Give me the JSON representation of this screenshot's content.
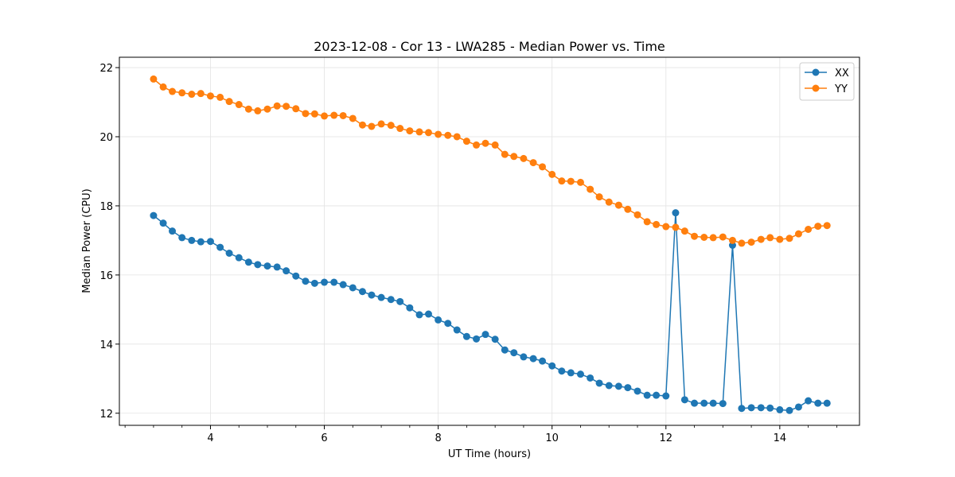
{
  "chart_data": {
    "type": "line",
    "title": "2023-12-08 - Cor 13 - LWA285 - Median Power vs. Time",
    "xlabel": "UT Time (hours)",
    "ylabel": "Median Power (CPU)",
    "xlim": [
      2.4,
      15.4
    ],
    "ylim": [
      11.65,
      22.3
    ],
    "xticks": [
      4,
      6,
      8,
      10,
      12,
      14
    ],
    "xtick_labels": [
      "4",
      "6",
      "8",
      "10",
      "12",
      "14"
    ],
    "yticks": [
      12,
      14,
      16,
      18,
      20,
      22
    ],
    "ytick_labels": [
      "12",
      "14",
      "16",
      "18",
      "20",
      "22"
    ],
    "grid": true,
    "legend_position": "top-right",
    "x": [
      3.0,
      3.17,
      3.33,
      3.5,
      3.67,
      3.83,
      4.0,
      4.17,
      4.33,
      4.5,
      4.67,
      4.83,
      5.0,
      5.17,
      5.33,
      5.5,
      5.67,
      5.83,
      6.0,
      6.17,
      6.33,
      6.5,
      6.67,
      6.83,
      7.0,
      7.17,
      7.33,
      7.5,
      7.67,
      7.83,
      8.0,
      8.17,
      8.33,
      8.5,
      8.67,
      8.83,
      9.0,
      9.17,
      9.33,
      9.5,
      9.67,
      9.83,
      10.0,
      10.17,
      10.33,
      10.5,
      10.67,
      10.83,
      11.0,
      11.17,
      11.33,
      11.5,
      11.67,
      11.83,
      12.0,
      12.17,
      12.33,
      12.5,
      12.67,
      12.83,
      13.0,
      13.17,
      13.33,
      13.5,
      13.67,
      13.83,
      14.0,
      14.17,
      14.33,
      14.5,
      14.67,
      14.83
    ],
    "series": [
      {
        "name": "XX",
        "color": "#1f77b4",
        "values": [
          17.72,
          17.5,
          17.27,
          17.08,
          17.0,
          16.96,
          16.97,
          16.8,
          16.63,
          16.5,
          16.37,
          16.3,
          16.26,
          16.23,
          16.12,
          15.97,
          15.82,
          15.76,
          15.79,
          15.79,
          15.72,
          15.63,
          15.52,
          15.42,
          15.35,
          15.29,
          15.23,
          15.05,
          14.85,
          14.87,
          14.7,
          14.6,
          14.41,
          14.22,
          14.15,
          14.28,
          14.14,
          13.83,
          13.75,
          13.63,
          13.58,
          13.51,
          13.37,
          13.22,
          13.17,
          13.13,
          13.02,
          12.87,
          12.8,
          12.78,
          12.74,
          12.64,
          12.52,
          12.52,
          12.5,
          17.8,
          12.39,
          12.29,
          12.29,
          12.29,
          12.28,
          16.86,
          12.14,
          12.16,
          12.16,
          12.15,
          12.1,
          12.08,
          12.18,
          12.36,
          12.29,
          12.29
        ]
      },
      {
        "name": "YY",
        "color": "#ff7f0e",
        "values": [
          21.67,
          21.44,
          21.31,
          21.27,
          21.23,
          21.25,
          21.18,
          21.14,
          21.02,
          20.93,
          20.8,
          20.75,
          20.8,
          20.89,
          20.88,
          20.81,
          20.67,
          20.66,
          20.6,
          20.62,
          20.61,
          20.53,
          20.34,
          20.3,
          20.37,
          20.33,
          20.24,
          20.17,
          20.14,
          20.12,
          20.07,
          20.04,
          20.0,
          19.87,
          19.76,
          19.81,
          19.76,
          19.49,
          19.43,
          19.37,
          19.25,
          19.13,
          18.91,
          18.72,
          18.71,
          18.68,
          18.48,
          18.26,
          18.11,
          18.02,
          17.9,
          17.74,
          17.54,
          17.46,
          17.4,
          17.38,
          17.27,
          17.12,
          17.09,
          17.08,
          17.1,
          17.0,
          16.92,
          16.95,
          17.03,
          17.08,
          17.03,
          17.06,
          17.19,
          17.32,
          17.41,
          17.43
        ]
      }
    ]
  }
}
